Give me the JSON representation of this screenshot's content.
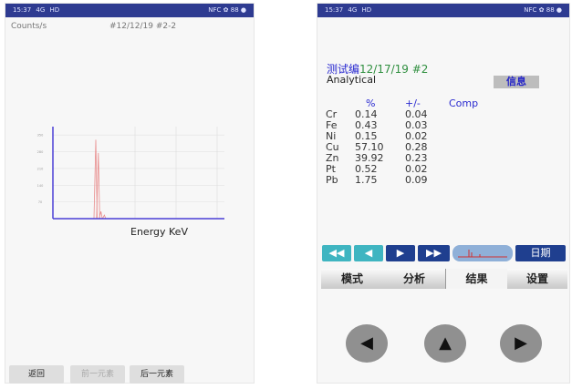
{
  "status_bar": {
    "time": "15:37",
    "signal": "4G",
    "wifi": "HD",
    "right_icons": "NFC ✿ 88 ●"
  },
  "left": {
    "ylabel": "Counts/s",
    "sample_id": "#12/12/19 #2-2",
    "buttons": {
      "back": "返回",
      "prev": "前一元素",
      "next": "后一元素"
    },
    "chart_data": {
      "type": "line",
      "xlabel": "Energy KeV",
      "ylabel": "Counts/s",
      "yticks": [
        "350",
        "280",
        "210",
        "140",
        "70"
      ],
      "grid": true,
      "series": [
        {
          "color": "#e88b8b",
          "peaks": [
            {
              "x_frac": 0.25,
              "y": 330
            },
            {
              "x_frac": 0.265,
              "y": 275
            },
            {
              "x_frac": 0.28,
              "y": 30
            },
            {
              "x_frac": 0.3,
              "y": 15
            }
          ]
        }
      ],
      "axis_color": "#4a3fd6"
    }
  },
  "right": {
    "title_prefix": "测试编",
    "title_id": "12/17/19 #2",
    "mode": "Analytical",
    "info_button": "信息",
    "table": {
      "headers": [
        "%",
        "+/-",
        "Comp"
      ],
      "rows": [
        {
          "el": "Cr",
          "pct": "0.14",
          "err": "0.04"
        },
        {
          "el": "Fe",
          "pct": "0.43",
          "err": "0.03"
        },
        {
          "el": "Ni",
          "pct": "0.15",
          "err": "0.02"
        },
        {
          "el": "Cu",
          "pct": "57.10",
          "err": "0.28"
        },
        {
          "el": "Zn",
          "pct": "39.92",
          "err": "0.23"
        },
        {
          "el": "Pt",
          "pct": "0.52",
          "err": "0.02"
        },
        {
          "el": "Pb",
          "pct": "1.75",
          "err": "0.09"
        }
      ]
    },
    "nav": {
      "first": "◀◀",
      "prev": "◀",
      "next": "▶",
      "last": "▶▶",
      "date": "日期"
    },
    "tabs": [
      "模式",
      "分析",
      "结果",
      "设置"
    ],
    "arrows": {
      "left": "◀",
      "up": "▲",
      "right": "▶"
    }
  }
}
